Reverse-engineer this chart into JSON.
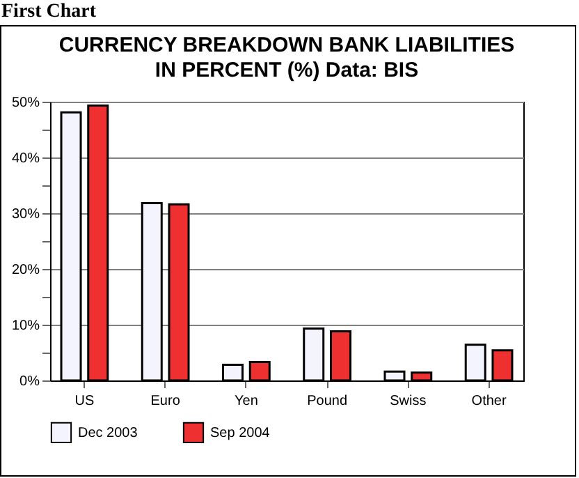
{
  "chart_data": {
    "type": "bar",
    "title": "CURRENCY BREAKDOWN BANK LIABILITIES\nIN PERCENT (%)     Data: BIS",
    "annotations": [
      "First Chart"
    ],
    "categories": [
      "US",
      "Euro",
      "Yen",
      "Pound",
      "Swiss",
      "Other"
    ],
    "series": [
      {
        "name": "Dec 2003",
        "color": "#f4f4ff",
        "values": [
          48.1,
          31.8,
          2.8,
          9.3,
          1.6,
          6.4
        ]
      },
      {
        "name": "Sep 2004",
        "color": "#ee3030",
        "values": [
          49.3,
          31.6,
          3.3,
          8.8,
          1.4,
          5.4
        ]
      }
    ],
    "ylim": [
      0,
      50
    ],
    "yticks": [
      {
        "value": 0,
        "label": "0%"
      },
      {
        "value": 5,
        "label": null
      },
      {
        "value": 10,
        "label": "10%"
      },
      {
        "value": 15,
        "label": null
      },
      {
        "value": 20,
        "label": "20%"
      },
      {
        "value": 25,
        "label": null
      },
      {
        "value": 30,
        "label": "30%"
      },
      {
        "value": 35,
        "label": null
      },
      {
        "value": 40,
        "label": "40%"
      },
      {
        "value": 45,
        "label": null
      },
      {
        "value": 50,
        "label": "50%"
      }
    ],
    "grid": "y",
    "legend": "bottom"
  }
}
